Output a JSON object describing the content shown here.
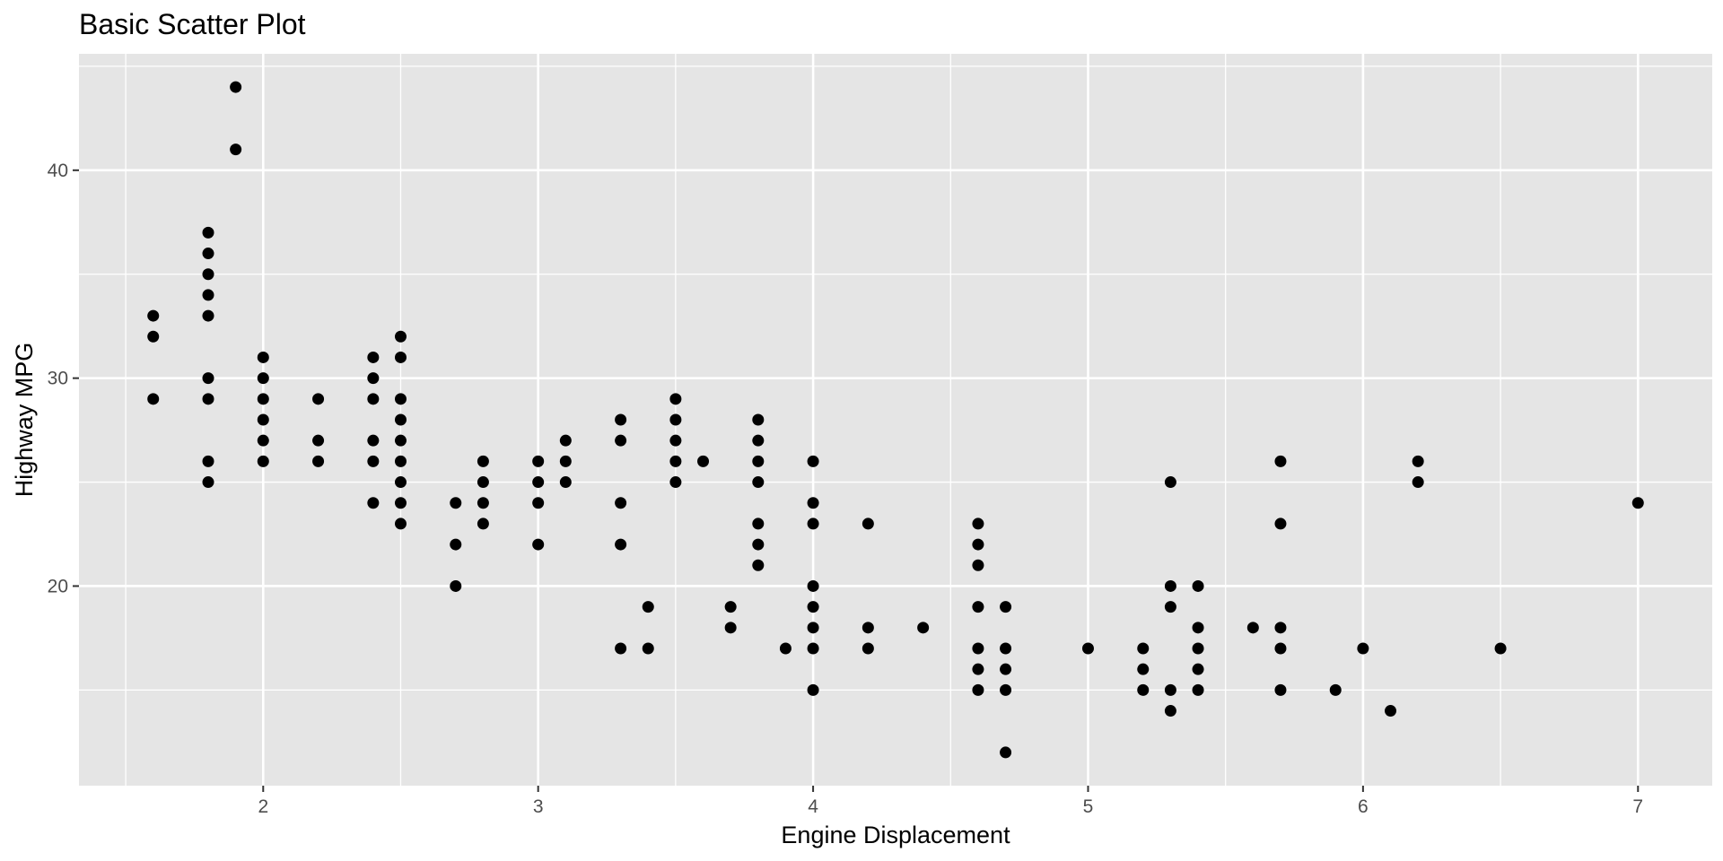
{
  "chart_data": {
    "type": "scatter",
    "title": "Basic Scatter Plot",
    "xlabel": "Engine Displacement",
    "ylabel": "Highway MPG",
    "xlim": [
      1.33,
      7.27
    ],
    "ylim": [
      10.4,
      45.6
    ],
    "x_ticks": [
      2,
      3,
      4,
      5,
      6,
      7
    ],
    "y_ticks": [
      20,
      30,
      40
    ],
    "x_tick_labels": [
      "2",
      "3",
      "4",
      "5",
      "6",
      "7"
    ],
    "y_tick_labels": [
      "20",
      "30",
      "40"
    ],
    "grid": true,
    "point_color": "#000000",
    "panel_color": "#e5e5e5",
    "points": [
      [
        1.6,
        33
      ],
      [
        1.6,
        32
      ],
      [
        1.6,
        29
      ],
      [
        1.8,
        37
      ],
      [
        1.8,
        36
      ],
      [
        1.8,
        35
      ],
      [
        1.8,
        34
      ],
      [
        1.8,
        33
      ],
      [
        1.8,
        30
      ],
      [
        1.8,
        29
      ],
      [
        1.8,
        26
      ],
      [
        1.8,
        25
      ],
      [
        1.9,
        44
      ],
      [
        1.9,
        41
      ],
      [
        2.0,
        31
      ],
      [
        2.0,
        30
      ],
      [
        2.0,
        29
      ],
      [
        2.0,
        28
      ],
      [
        2.0,
        27
      ],
      [
        2.0,
        26
      ],
      [
        2.2,
        29
      ],
      [
        2.2,
        27
      ],
      [
        2.2,
        26
      ],
      [
        2.4,
        31
      ],
      [
        2.4,
        30
      ],
      [
        2.4,
        29
      ],
      [
        2.4,
        27
      ],
      [
        2.4,
        26
      ],
      [
        2.4,
        24
      ],
      [
        2.5,
        32
      ],
      [
        2.5,
        31
      ],
      [
        2.5,
        29
      ],
      [
        2.5,
        28
      ],
      [
        2.5,
        27
      ],
      [
        2.5,
        26
      ],
      [
        2.5,
        25
      ],
      [
        2.5,
        24
      ],
      [
        2.5,
        23
      ],
      [
        2.7,
        24
      ],
      [
        2.7,
        22
      ],
      [
        2.7,
        20
      ],
      [
        2.8,
        26
      ],
      [
        2.8,
        25
      ],
      [
        2.8,
        24
      ],
      [
        2.8,
        23
      ],
      [
        3.0,
        26
      ],
      [
        3.0,
        25
      ],
      [
        3.0,
        24
      ],
      [
        3.0,
        22
      ],
      [
        3.1,
        27
      ],
      [
        3.1,
        26
      ],
      [
        3.1,
        25
      ],
      [
        3.3,
        28
      ],
      [
        3.3,
        27
      ],
      [
        3.3,
        24
      ],
      [
        3.3,
        22
      ],
      [
        3.3,
        17
      ],
      [
        3.4,
        19
      ],
      [
        3.4,
        17
      ],
      [
        3.5,
        29
      ],
      [
        3.5,
        28
      ],
      [
        3.5,
        27
      ],
      [
        3.5,
        26
      ],
      [
        3.5,
        25
      ],
      [
        3.6,
        26
      ],
      [
        3.7,
        19
      ],
      [
        3.7,
        18
      ],
      [
        3.8,
        28
      ],
      [
        3.8,
        27
      ],
      [
        3.8,
        26
      ],
      [
        3.8,
        25
      ],
      [
        3.8,
        23
      ],
      [
        3.8,
        22
      ],
      [
        3.8,
        21
      ],
      [
        3.9,
        17
      ],
      [
        4.0,
        26
      ],
      [
        4.0,
        24
      ],
      [
        4.0,
        23
      ],
      [
        4.0,
        20
      ],
      [
        4.0,
        19
      ],
      [
        4.0,
        18
      ],
      [
        4.0,
        17
      ],
      [
        4.0,
        15
      ],
      [
        4.2,
        23
      ],
      [
        4.2,
        18
      ],
      [
        4.2,
        17
      ],
      [
        4.4,
        18
      ],
      [
        4.6,
        23
      ],
      [
        4.6,
        22
      ],
      [
        4.6,
        21
      ],
      [
        4.6,
        19
      ],
      [
        4.6,
        17
      ],
      [
        4.6,
        16
      ],
      [
        4.6,
        15
      ],
      [
        4.7,
        19
      ],
      [
        4.7,
        17
      ],
      [
        4.7,
        16
      ],
      [
        4.7,
        15
      ],
      [
        4.7,
        12
      ],
      [
        5.0,
        17
      ],
      [
        5.2,
        17
      ],
      [
        5.2,
        16
      ],
      [
        5.2,
        15
      ],
      [
        5.3,
        25
      ],
      [
        5.3,
        20
      ],
      [
        5.3,
        19
      ],
      [
        5.3,
        15
      ],
      [
        5.3,
        14
      ],
      [
        5.4,
        20
      ],
      [
        5.4,
        18
      ],
      [
        5.4,
        17
      ],
      [
        5.4,
        16
      ],
      [
        5.4,
        15
      ],
      [
        5.6,
        18
      ],
      [
        5.7,
        26
      ],
      [
        5.7,
        23
      ],
      [
        5.7,
        18
      ],
      [
        5.7,
        17
      ],
      [
        5.7,
        15
      ],
      [
        5.9,
        15
      ],
      [
        6.0,
        17
      ],
      [
        6.1,
        14
      ],
      [
        6.2,
        26
      ],
      [
        6.2,
        25
      ],
      [
        6.5,
        17
      ],
      [
        7.0,
        24
      ]
    ]
  }
}
